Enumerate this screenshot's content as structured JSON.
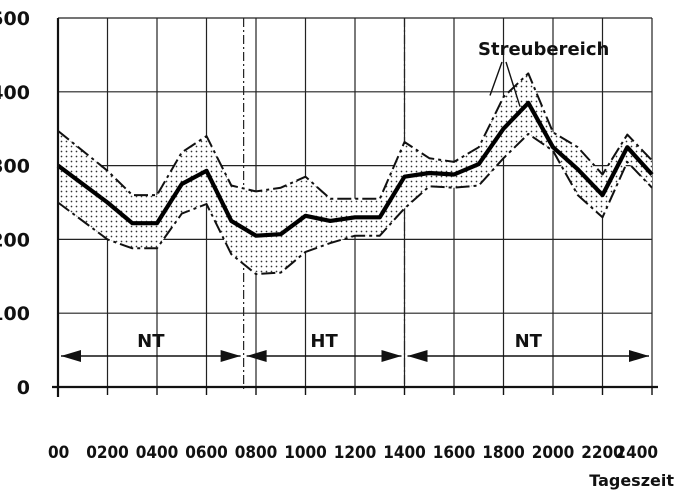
{
  "chart_data": {
    "type": "line",
    "title": "",
    "xlabel": "Tageszeit",
    "ylabel": "",
    "xlim": [
      0,
      2400
    ],
    "ylim": [
      0,
      500
    ],
    "grid": true,
    "x_tick_labels": [
      "00",
      "0200",
      "0400",
      "0600",
      "0800",
      "1000",
      "1200",
      "1400",
      "1600",
      "1800",
      "2000",
      "2200",
      "2400"
    ],
    "x_tick_values": [
      0,
      200,
      400,
      600,
      800,
      1000,
      1200,
      1400,
      1600,
      1800,
      2000,
      2200,
      2400
    ],
    "y_ticks": [
      0,
      100,
      200,
      300,
      400,
      500
    ],
    "x": [
      0,
      200,
      300,
      400,
      500,
      600,
      700,
      800,
      900,
      1000,
      1100,
      1200,
      1300,
      1400,
      1500,
      1600,
      1700,
      1800,
      1900,
      2000,
      2100,
      2200,
      2300,
      2400
    ],
    "series": [
      {
        "role": "upper",
        "values": [
          347,
          293,
          260,
          260,
          318,
          340,
          273,
          265,
          270,
          285,
          255,
          255,
          255,
          332,
          310,
          305,
          325,
          393,
          425,
          345,
          325,
          288,
          342,
          307
        ]
      },
      {
        "role": "mean",
        "values": [
          300,
          250,
          222,
          222,
          275,
          293,
          225,
          205,
          207,
          232,
          225,
          230,
          230,
          285,
          290,
          288,
          302,
          350,
          385,
          325,
          295,
          260,
          325,
          288
        ]
      },
      {
        "role": "lower",
        "values": [
          250,
          200,
          188,
          188,
          235,
          248,
          180,
          153,
          155,
          183,
          195,
          205,
          205,
          242,
          272,
          270,
          273,
          310,
          343,
          320,
          260,
          230,
          305,
          270
        ]
      }
    ],
    "annotations": {
      "band_label": "Streubereich",
      "periods": [
        {
          "label": "NT",
          "from": 0,
          "to": 750
        },
        {
          "label": "HT",
          "from": 750,
          "to": 1400
        },
        {
          "label": "NT",
          "from": 1400,
          "to": 2400
        }
      ]
    }
  }
}
